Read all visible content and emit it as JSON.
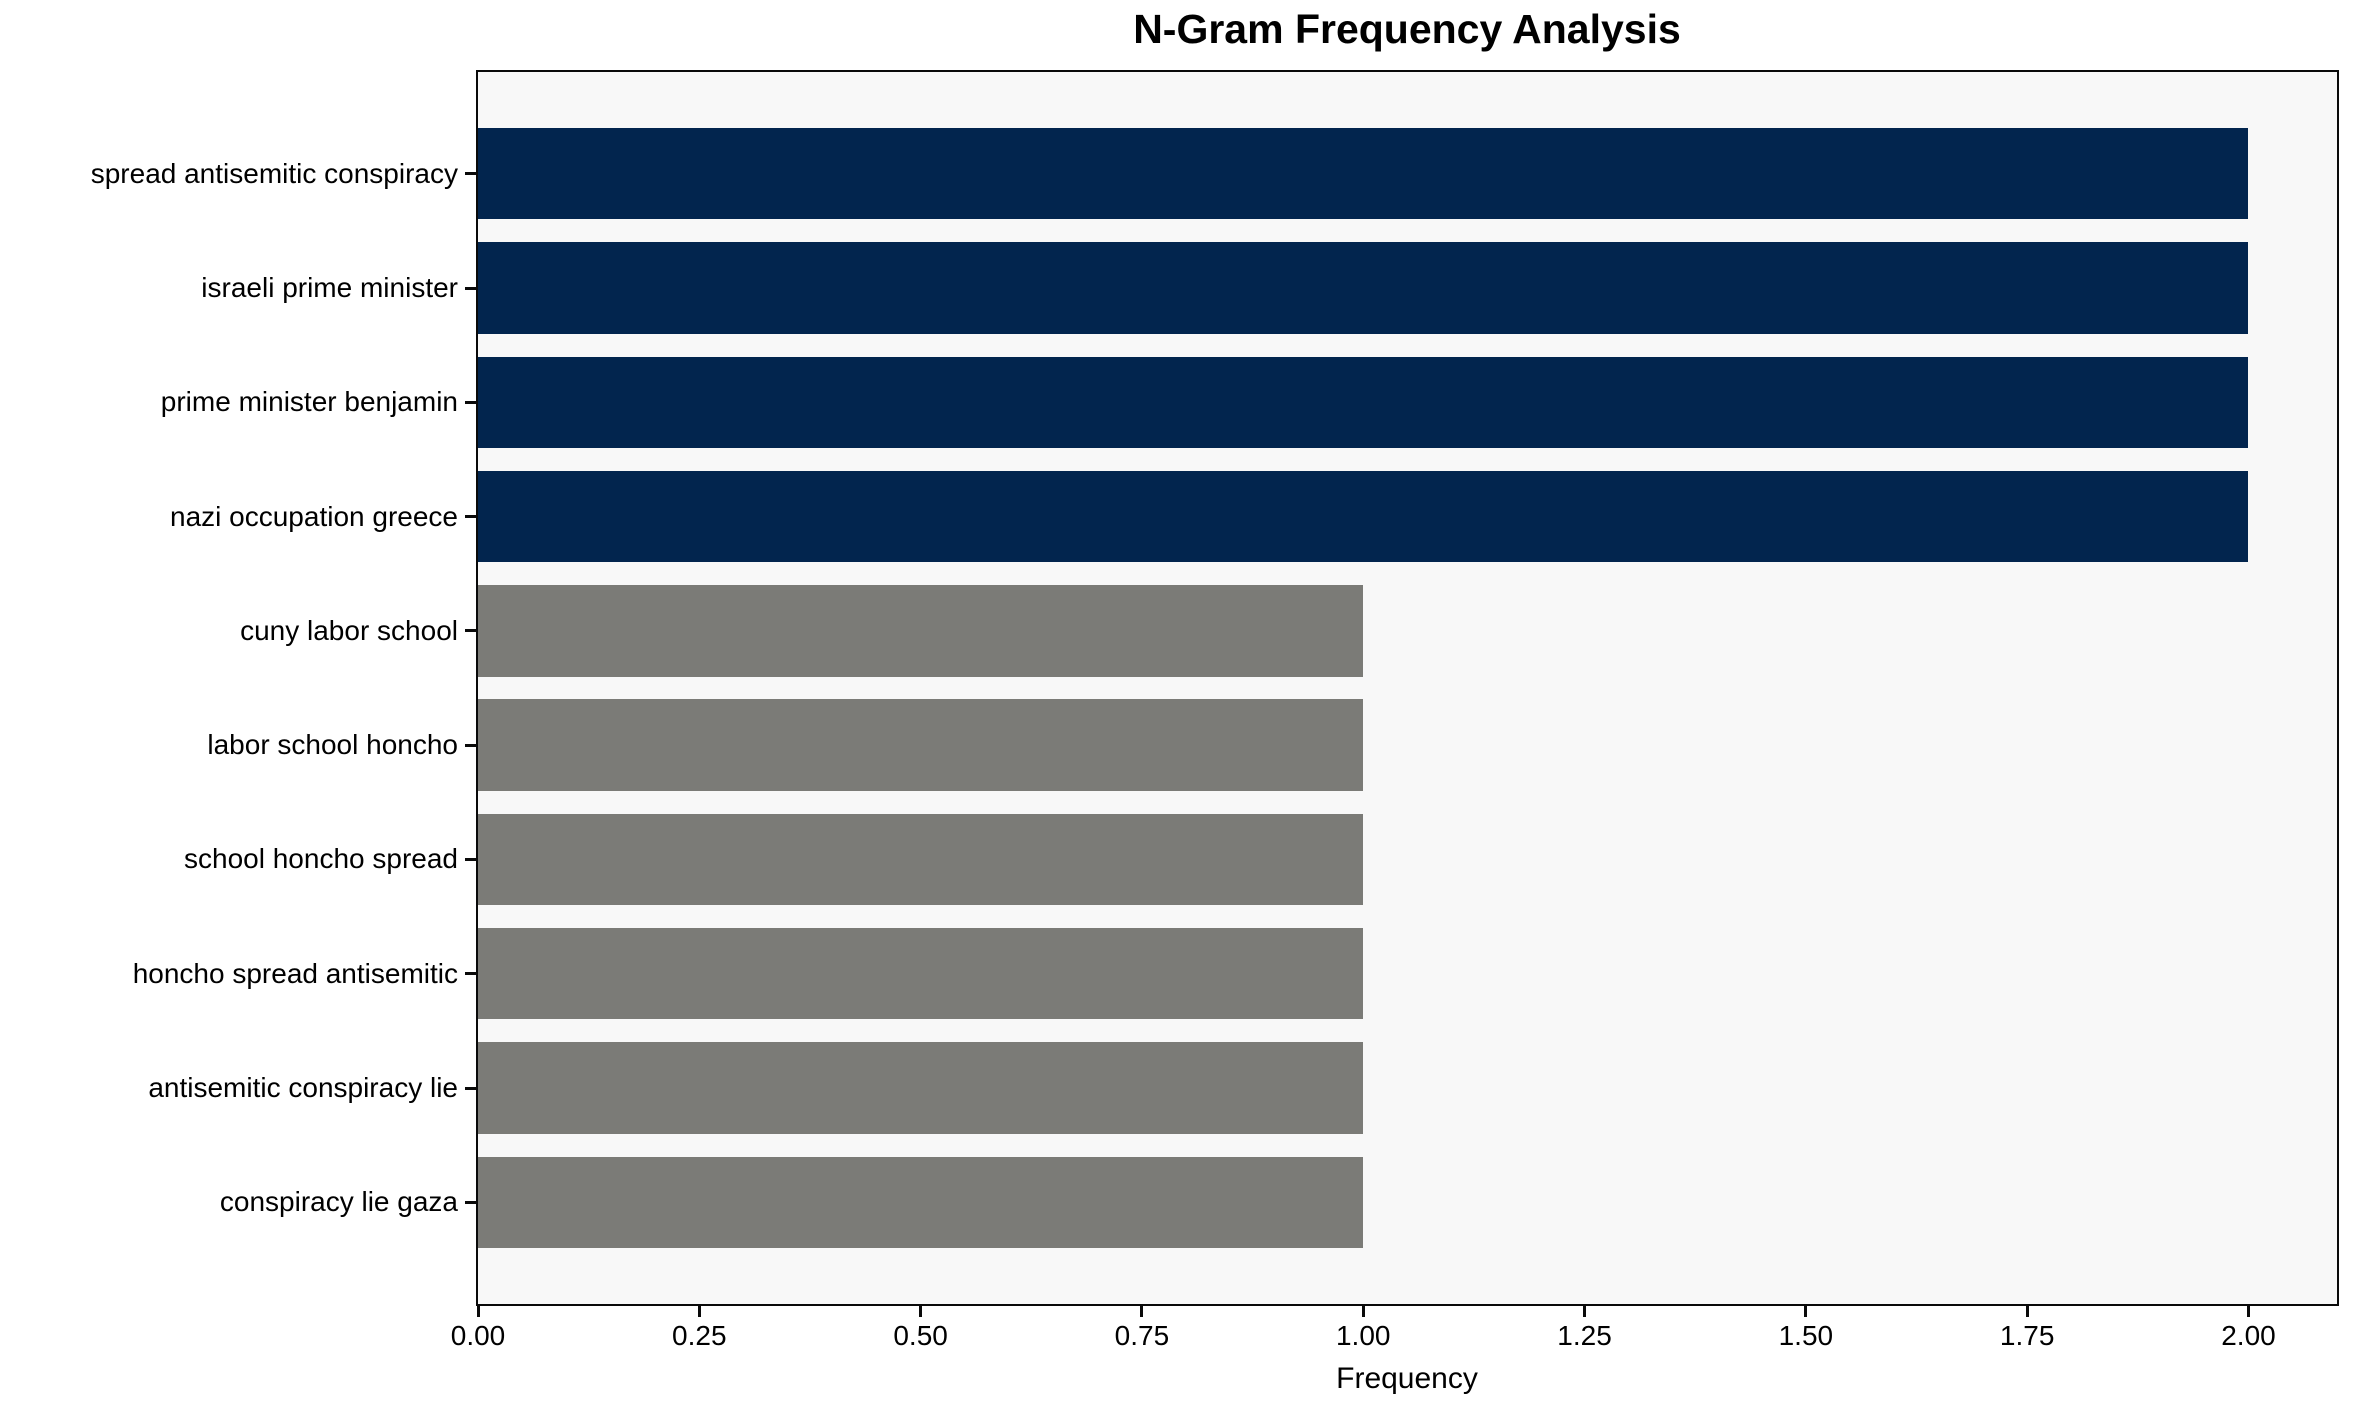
{
  "chart_data": {
    "type": "bar",
    "orientation": "horizontal",
    "title": "N-Gram Frequency Analysis",
    "xlabel": "Frequency",
    "ylabel": "",
    "categories": [
      "spread antisemitic conspiracy",
      "israeli prime minister",
      "prime minister benjamin",
      "nazi occupation greece",
      "cuny labor school",
      "labor school honcho",
      "school honcho spread",
      "honcho spread antisemitic",
      "antisemitic conspiracy lie",
      "conspiracy lie gaza"
    ],
    "values": [
      2,
      2,
      2,
      2,
      1,
      1,
      1,
      1,
      1,
      1
    ],
    "bar_colors": [
      "#02254e",
      "#02254e",
      "#02254e",
      "#02254e",
      "#7b7b77",
      "#7b7b77",
      "#7b7b77",
      "#7b7b77",
      "#7b7b77",
      "#7b7b77"
    ],
    "color_frequency_2": "#02254e",
    "color_frequency_1": "#7b7b77",
    "xlim": [
      0,
      2.1
    ],
    "x_tick_values": [
      0.0,
      0.25,
      0.5,
      0.75,
      1.0,
      1.25,
      1.5,
      1.75,
      2.0
    ],
    "x_tick_labels": [
      "0.00",
      "0.25",
      "0.50",
      "0.75",
      "1.00",
      "1.25",
      "1.50",
      "1.75",
      "2.00"
    ],
    "grid": false,
    "legend_position": "none",
    "plot_background": "#f8f8f8",
    "figure_background": "#ffffff",
    "bar_relative_height": 0.8
  }
}
